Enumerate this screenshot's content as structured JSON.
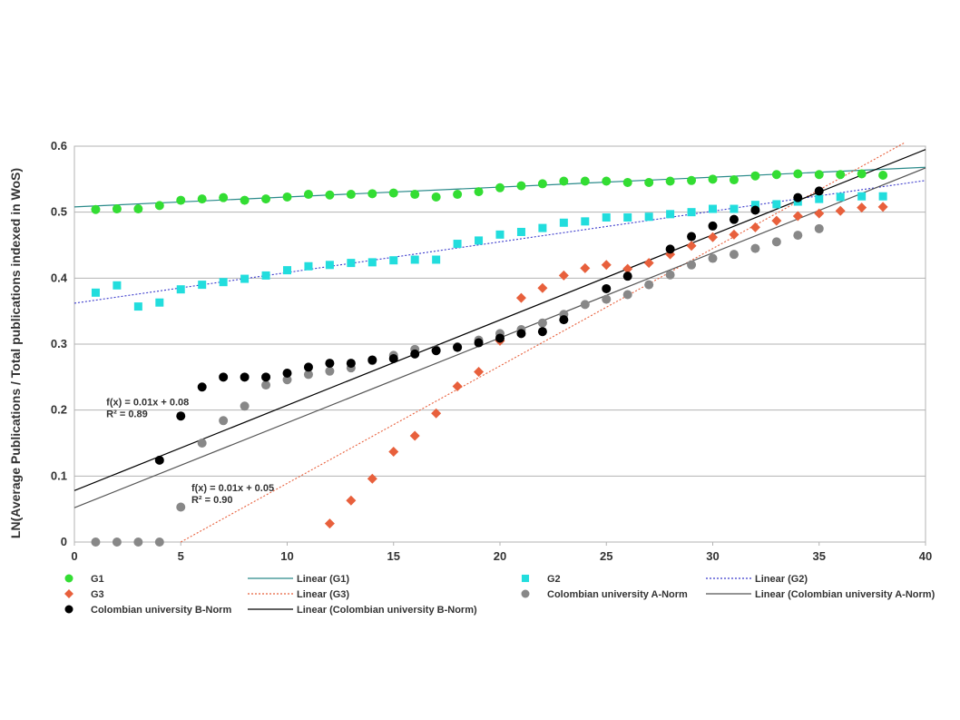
{
  "chart_data": {
    "type": "scatter",
    "title": "",
    "xlabel": "",
    "ylabel": "LN(Average Publications / Total publications indexed in WoS)",
    "xlim": [
      0,
      40
    ],
    "ylim": [
      0,
      0.6
    ],
    "x_ticks": [
      "0",
      "5",
      "10",
      "15",
      "20",
      "25",
      "30",
      "35",
      "40"
    ],
    "y_ticks": [
      "0",
      "0.1",
      "0.2",
      "0.3",
      "0.4",
      "0.5",
      "0.6"
    ],
    "grid": "horizontal",
    "legend_position": "bottom",
    "series": [
      {
        "name": "G1",
        "marker": "circle",
        "color": "#33dd33",
        "x": [
          1,
          2,
          3,
          4,
          5,
          6,
          7,
          8,
          9,
          10,
          11,
          12,
          13,
          14,
          15,
          16,
          17,
          18,
          19,
          20,
          21,
          22,
          23,
          24,
          25,
          26,
          27,
          28,
          29,
          30,
          31,
          32,
          33,
          34,
          35,
          36,
          37,
          38
        ],
        "y": [
          0.504,
          0.505,
          0.505,
          0.51,
          0.518,
          0.52,
          0.522,
          0.518,
          0.52,
          0.523,
          0.527,
          0.526,
          0.527,
          0.528,
          0.529,
          0.527,
          0.523,
          0.527,
          0.531,
          0.537,
          0.54,
          0.543,
          0.547,
          0.547,
          0.547,
          0.545,
          0.545,
          0.547,
          0.548,
          0.55,
          0.549,
          0.555,
          0.557,
          0.558,
          0.557,
          0.557,
          0.558,
          0.556
        ]
      },
      {
        "name": "G2",
        "marker": "square",
        "color": "#22dddd",
        "x": [
          1,
          2,
          3,
          4,
          5,
          6,
          7,
          8,
          9,
          10,
          11,
          12,
          13,
          14,
          15,
          16,
          17,
          18,
          19,
          20,
          21,
          22,
          23,
          24,
          25,
          26,
          27,
          28,
          29,
          30,
          31,
          32,
          33,
          34,
          35,
          36,
          37,
          38
        ],
        "y": [
          0.378,
          0.389,
          0.357,
          0.363,
          0.383,
          0.39,
          0.394,
          0.399,
          0.404,
          0.412,
          0.418,
          0.42,
          0.423,
          0.424,
          0.427,
          0.428,
          0.428,
          0.452,
          0.457,
          0.466,
          0.47,
          0.476,
          0.484,
          0.486,
          0.492,
          0.492,
          0.493,
          0.497,
          0.5,
          0.505,
          0.505,
          0.511,
          0.512,
          0.516,
          0.52,
          0.523,
          0.524,
          0.524
        ]
      },
      {
        "name": "G3",
        "marker": "diamond",
        "color": "#e8603c",
        "x": [
          12,
          13,
          14,
          15,
          16,
          17,
          18,
          19,
          20,
          21,
          22,
          23,
          24,
          25,
          26,
          27,
          28,
          29,
          30,
          31,
          32,
          33,
          34,
          35,
          36,
          37,
          38
        ],
        "y": [
          0.028,
          0.063,
          0.096,
          0.137,
          0.161,
          0.195,
          0.236,
          0.258,
          0.305,
          0.37,
          0.385,
          0.404,
          0.415,
          0.42,
          0.414,
          0.423,
          0.436,
          0.449,
          0.462,
          0.466,
          0.477,
          0.487,
          0.494,
          0.498,
          0.502,
          0.507,
          0.508
        ]
      },
      {
        "name": "Colombian university A-Norm",
        "marker": "circle",
        "color": "#888888",
        "x": [
          1,
          2,
          3,
          4,
          5,
          6,
          7,
          8,
          9,
          10,
          11,
          12,
          13,
          14,
          15,
          16,
          17,
          18,
          19,
          20,
          21,
          22,
          23,
          24,
          25,
          26,
          27,
          28,
          29,
          30,
          31,
          32,
          33,
          34,
          35
        ],
        "y": [
          0,
          0,
          0,
          0,
          0.053,
          0.15,
          0.184,
          0.206,
          0.238,
          0.246,
          0.254,
          0.259,
          0.264,
          0.275,
          0.283,
          0.292,
          0.291,
          0.296,
          0.306,
          0.316,
          0.322,
          0.332,
          0.345,
          0.36,
          0.368,
          0.375,
          0.39,
          0.405,
          0.42,
          0.43,
          0.436,
          0.445,
          0.455,
          0.465,
          0.475
        ]
      },
      {
        "name": "Colombian university B-Norm",
        "marker": "circle",
        "color": "#000000",
        "x": [
          4,
          5,
          6,
          7,
          8,
          9,
          10,
          11,
          12,
          13,
          14,
          15,
          16,
          17,
          18,
          19,
          20,
          21,
          22,
          23,
          25,
          26,
          28,
          29,
          30,
          31,
          32,
          34,
          35
        ],
        "y": [
          0.124,
          0.191,
          0.235,
          0.25,
          0.25,
          0.25,
          0.256,
          0.265,
          0.271,
          0.271,
          0.276,
          0.278,
          0.285,
          0.29,
          0.295,
          0.302,
          0.309,
          0.316,
          0.319,
          0.337,
          0.384,
          0.403,
          0.444,
          0.463,
          0.479,
          0.489,
          0.503,
          0.522,
          0.532
        ]
      }
    ],
    "trendlines": [
      {
        "name": "Linear (G1)",
        "color": "#2a8a8a",
        "dash": "solid",
        "x": [
          0,
          40
        ],
        "y": [
          0.508,
          0.568
        ]
      },
      {
        "name": "Linear (G2)",
        "color": "#3a3acc",
        "dash": "dotted",
        "x": [
          0,
          40
        ],
        "y": [
          0.362,
          0.548
        ]
      },
      {
        "name": "Linear (G3)",
        "color": "#e8603c",
        "dash": "dotted",
        "x": [
          5,
          39
        ],
        "y": [
          0.0,
          0.605
        ]
      },
      {
        "name": "Linear (Colombian university A-Norm)",
        "color": "#555555",
        "dash": "solid",
        "x": [
          0,
          40
        ],
        "y": [
          0.052,
          0.567
        ]
      },
      {
        "name": "Linear (Colombian university B-Norm)",
        "color": "#000000",
        "dash": "solid",
        "x": [
          0,
          40
        ],
        "y": [
          0.078,
          0.595
        ]
      }
    ],
    "annotations": [
      {
        "lines": [
          "f(x) = 0.01x + 0.08",
          "R² = 0.89"
        ],
        "at_x": 1.5,
        "at_y": 0.207
      },
      {
        "lines": [
          "f(x) = 0.01x + 0.05",
          "R² = 0.90"
        ],
        "at_x": 5.5,
        "at_y": 0.077
      }
    ],
    "legend": [
      {
        "label": "G1",
        "kind": "marker",
        "ref": "G1"
      },
      {
        "label": "Linear (G1)",
        "kind": "line",
        "ref": "Linear (G1)"
      },
      {
        "label": "G2",
        "kind": "marker",
        "ref": "G2"
      },
      {
        "label": "Linear (G2)",
        "kind": "line",
        "ref": "Linear (G2)"
      },
      {
        "label": "G3",
        "kind": "marker",
        "ref": "G3"
      },
      {
        "label": "Linear (G3)",
        "kind": "line",
        "ref": "Linear (G3)"
      },
      {
        "label": "Colombian university A-Norm",
        "kind": "marker",
        "ref": "Colombian university A-Norm"
      },
      {
        "label": "Linear (Colombian university A-Norm)",
        "kind": "line",
        "ref": "Linear (Colombian university A-Norm)"
      },
      {
        "label": "Colombian university B-Norm",
        "kind": "marker",
        "ref": "Colombian university B-Norm"
      },
      {
        "label": "Linear (Colombian university B-Norm)",
        "kind": "line",
        "ref": "Linear (Colombian university B-Norm)"
      }
    ]
  }
}
